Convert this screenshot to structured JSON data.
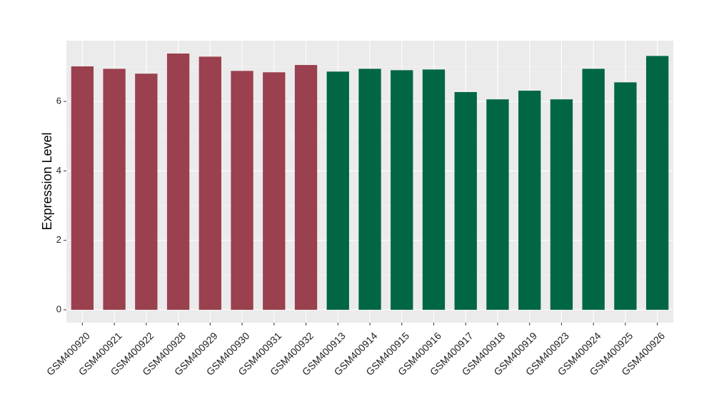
{
  "chart_data": {
    "type": "bar",
    "y_label": "Expression Level",
    "categories": [
      "GSM400920",
      "GSM400921",
      "GSM400922",
      "GSM400928",
      "GSM400929",
      "GSM400930",
      "GSM400931",
      "GSM400932",
      "GSM400913",
      "GSM400914",
      "GSM400915",
      "GSM400916",
      "GSM400917",
      "GSM400918",
      "GSM400919",
      "GSM400923",
      "GSM400924",
      "GSM400925",
      "GSM400926"
    ],
    "values": [
      7.01,
      6.94,
      6.8,
      7.38,
      7.29,
      6.88,
      6.84,
      7.05,
      6.86,
      6.94,
      6.9,
      6.92,
      6.27,
      6.06,
      6.31,
      6.06,
      6.94,
      6.55,
      7.31
    ],
    "colors": [
      "#9b404e",
      "#9b404e",
      "#9b404e",
      "#9b404e",
      "#9b404e",
      "#9b404e",
      "#9b404e",
      "#9b404e",
      "#006644",
      "#006644",
      "#006644",
      "#006644",
      "#006644",
      "#006644",
      "#006644",
      "#006644",
      "#006644",
      "#006644",
      "#006644"
    ],
    "ylim": [
      -0.37,
      7.75
    ],
    "yticks": [
      0,
      2,
      4,
      6
    ],
    "grid": true
  }
}
